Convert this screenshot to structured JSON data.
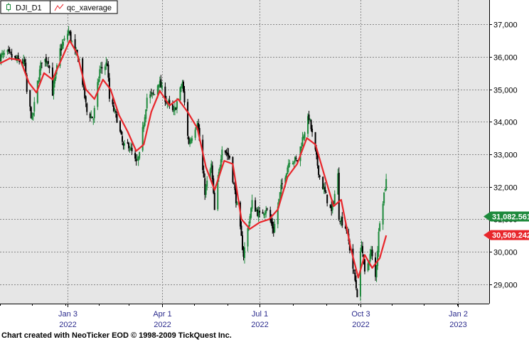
{
  "chart_data": {
    "type": "candlestick",
    "instrument": "DJI_D1",
    "overlay_name": "qc_xaverage",
    "x_range": [
      "2021-11-01",
      "2023-01-31"
    ],
    "y_range": [
      28400,
      37750
    ],
    "y_ticks": [
      {
        "value": 29000,
        "label": "29,000"
      },
      {
        "value": 30000,
        "label": "30,000"
      },
      {
        "value": 31000,
        "label": "31,000"
      },
      {
        "value": 32000,
        "label": "32,000"
      },
      {
        "value": 33000,
        "label": "33,000"
      },
      {
        "value": 34000,
        "label": "34,000"
      },
      {
        "value": 35000,
        "label": "35,000"
      },
      {
        "value": 36000,
        "label": "36,000"
      },
      {
        "value": 37000,
        "label": "37,000"
      }
    ],
    "x_ticks": [
      {
        "date": "2022-01-03",
        "label": "Jan 3",
        "sublabel": "2022"
      },
      {
        "date": "2022-04-01",
        "label": "Apr 1",
        "sublabel": "2022"
      },
      {
        "date": "2022-07-01",
        "label": "Jul 1",
        "sublabel": "2022"
      },
      {
        "date": "2022-10-03",
        "label": "Oct 3",
        "sublabel": "2022"
      },
      {
        "date": "2023-01-02",
        "label": "Jan 2",
        "sublabel": "2023"
      }
    ],
    "last_price": {
      "value": 31082.56,
      "label": "31,082.561",
      "color": "#1e8a3c"
    },
    "average_value": {
      "value": 30509.24,
      "label": "30,509.242",
      "color": "#e8262b"
    },
    "close_path": [
      [
        "2021-11-01",
        36000
      ],
      [
        "2021-11-08",
        36100
      ],
      [
        "2021-11-16",
        35900
      ],
      [
        "2021-11-24",
        35800
      ],
      [
        "2021-11-26",
        34900
      ],
      [
        "2021-12-01",
        34050
      ],
      [
        "2021-12-06",
        35200
      ],
      [
        "2021-12-10",
        35900
      ],
      [
        "2021-12-16",
        35900
      ],
      [
        "2021-12-20",
        34900
      ],
      [
        "2021-12-27",
        36200
      ],
      [
        "2022-01-04",
        36800
      ],
      [
        "2022-01-10",
        36100
      ],
      [
        "2022-01-14",
        35900
      ],
      [
        "2022-01-21",
        34300
      ],
      [
        "2022-01-27",
        34100
      ],
      [
        "2022-02-02",
        35600
      ],
      [
        "2022-02-09",
        35800
      ],
      [
        "2022-02-11",
        34700
      ],
      [
        "2022-02-18",
        34100
      ],
      [
        "2022-02-24",
        33200
      ],
      [
        "2022-03-01",
        33300
      ],
      [
        "2022-03-08",
        32700
      ],
      [
        "2022-03-11",
        32950
      ],
      [
        "2022-03-18",
        34750
      ],
      [
        "2022-03-25",
        34850
      ],
      [
        "2022-03-29",
        35250
      ],
      [
        "2022-04-05",
        34650
      ],
      [
        "2022-04-12",
        34250
      ],
      [
        "2022-04-20",
        35200
      ],
      [
        "2022-04-26",
        33300
      ],
      [
        "2022-05-04",
        34050
      ],
      [
        "2022-05-11",
        31850
      ],
      [
        "2022-05-17",
        32650
      ],
      [
        "2022-05-20",
        31250
      ],
      [
        "2022-05-27",
        33250
      ],
      [
        "2022-06-03",
        32900
      ],
      [
        "2022-06-10",
        31400
      ],
      [
        "2022-06-16",
        29900
      ],
      [
        "2022-06-24",
        31500
      ],
      [
        "2022-07-01",
        31100
      ],
      [
        "2022-07-07",
        31350
      ],
      [
        "2022-07-14",
        30650
      ],
      [
        "2022-07-21",
        31950
      ],
      [
        "2022-07-29",
        32850
      ],
      [
        "2022-08-05",
        32800
      ],
      [
        "2022-08-12",
        33750
      ],
      [
        "2022-08-16",
        34150
      ],
      [
        "2022-08-22",
        33050
      ],
      [
        "2022-08-26",
        32300
      ],
      [
        "2022-09-06",
        31200
      ],
      [
        "2022-09-12",
        32350
      ],
      [
        "2022-09-13",
        31100
      ],
      [
        "2022-09-20",
        30700
      ],
      [
        "2022-09-30",
        28700
      ],
      [
        "2022-10-04",
        30300
      ],
      [
        "2022-10-07",
        29300
      ],
      [
        "2022-10-13",
        30000
      ],
      [
        "2022-10-17",
        29200
      ],
      [
        "2022-10-21",
        31000
      ],
      [
        "2022-10-27",
        32200
      ]
    ],
    "average_path": [
      [
        "2021-11-01",
        35800
      ],
      [
        "2021-11-10",
        35950
      ],
      [
        "2021-11-20",
        35900
      ],
      [
        "2021-11-28",
        35200
      ],
      [
        "2021-12-05",
        34900
      ],
      [
        "2021-12-12",
        35500
      ],
      [
        "2021-12-20",
        35300
      ],
      [
        "2021-12-28",
        35900
      ],
      [
        "2022-01-05",
        36500
      ],
      [
        "2022-01-12",
        36100
      ],
      [
        "2022-01-20",
        35000
      ],
      [
        "2022-01-28",
        34700
      ],
      [
        "2022-02-05",
        35300
      ],
      [
        "2022-02-12",
        35000
      ],
      [
        "2022-02-20",
        34200
      ],
      [
        "2022-02-28",
        33700
      ],
      [
        "2022-03-08",
        33100
      ],
      [
        "2022-03-15",
        33300
      ],
      [
        "2022-03-22",
        34300
      ],
      [
        "2022-03-30",
        34950
      ],
      [
        "2022-04-08",
        34500
      ],
      [
        "2022-04-16",
        34700
      ],
      [
        "2022-04-25",
        34300
      ],
      [
        "2022-05-04",
        33800
      ],
      [
        "2022-05-12",
        32600
      ],
      [
        "2022-05-20",
        31900
      ],
      [
        "2022-05-29",
        32800
      ],
      [
        "2022-06-06",
        32700
      ],
      [
        "2022-06-14",
        31000
      ],
      [
        "2022-06-22",
        30700
      ],
      [
        "2022-07-01",
        30900
      ],
      [
        "2022-07-10",
        31000
      ],
      [
        "2022-07-18",
        31300
      ],
      [
        "2022-07-27",
        32300
      ],
      [
        "2022-08-05",
        32700
      ],
      [
        "2022-08-14",
        33500
      ],
      [
        "2022-08-22",
        33300
      ],
      [
        "2022-08-30",
        32400
      ],
      [
        "2022-09-08",
        31400
      ],
      [
        "2022-09-15",
        31600
      ],
      [
        "2022-09-24",
        30100
      ],
      [
        "2022-10-01",
        29200
      ],
      [
        "2022-10-07",
        29900
      ],
      [
        "2022-10-14",
        29500
      ],
      [
        "2022-10-21",
        29800
      ],
      [
        "2022-10-27",
        30500
      ]
    ]
  },
  "footer": "Chart created with NeoTicker EOD © 1998-2009 TickQuest Inc.",
  "colors": {
    "background": "#e6e6e6",
    "up_candle": "#1e8a3c",
    "down_candle": "#000000",
    "average_line": "#e8262b",
    "axis_text": "#000000"
  }
}
